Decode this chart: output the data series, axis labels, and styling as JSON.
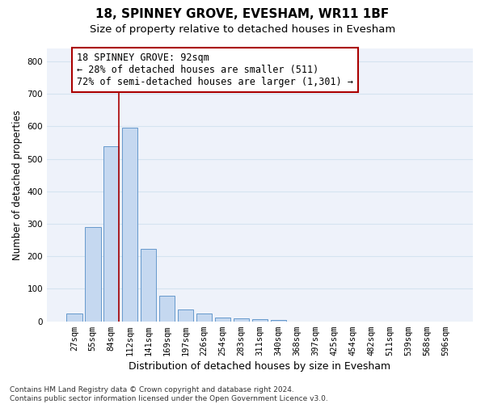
{
  "title_line1": "18, SPINNEY GROVE, EVESHAM, WR11 1BF",
  "title_line2": "Size of property relative to detached houses in Evesham",
  "xlabel": "Distribution of detached houses by size in Evesham",
  "ylabel": "Number of detached properties",
  "categories": [
    "27sqm",
    "55sqm",
    "84sqm",
    "112sqm",
    "141sqm",
    "169sqm",
    "197sqm",
    "226sqm",
    "254sqm",
    "283sqm",
    "311sqm",
    "340sqm",
    "368sqm",
    "397sqm",
    "425sqm",
    "454sqm",
    "482sqm",
    "511sqm",
    "539sqm",
    "568sqm",
    "596sqm"
  ],
  "values": [
    25,
    290,
    540,
    597,
    222,
    80,
    37,
    23,
    12,
    10,
    6,
    3,
    0,
    0,
    0,
    0,
    0,
    0,
    0,
    0,
    0
  ],
  "bar_color": "#c5d8f0",
  "bar_edge_color": "#6699cc",
  "vline_bin_index": 2,
  "vline_color": "#aa0000",
  "annotation_text": "18 SPINNEY GROVE: 92sqm\n← 28% of detached houses are smaller (511)\n72% of semi-detached houses are larger (1,301) →",
  "annotation_box_color": "#ffffff",
  "annotation_box_edge": "#aa0000",
  "grid_color": "#d5e3f0",
  "background_color": "#eef2fa",
  "ylim": [
    0,
    840
  ],
  "yticks": [
    0,
    100,
    200,
    300,
    400,
    500,
    600,
    700,
    800
  ],
  "footnote": "Contains HM Land Registry data © Crown copyright and database right 2024.\nContains public sector information licensed under the Open Government Licence v3.0.",
  "title_fontsize": 11,
  "subtitle_fontsize": 9.5,
  "tick_fontsize": 7.5,
  "ylabel_fontsize": 8.5,
  "xlabel_fontsize": 9,
  "annot_fontsize": 8.5,
  "footnote_fontsize": 6.5
}
